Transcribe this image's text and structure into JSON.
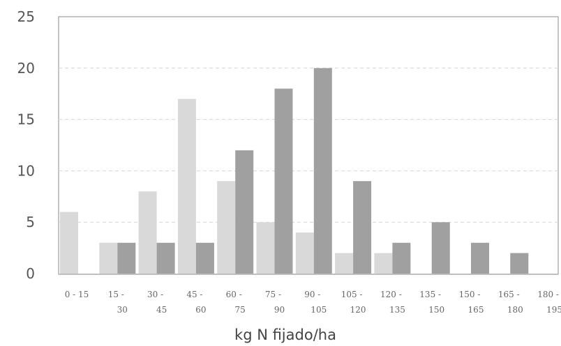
{
  "chart_data": {
    "type": "bar",
    "xlabel": "kg N fijado/ha",
    "ylabel": "",
    "ylim": [
      0,
      25
    ],
    "yticks": [
      "0",
      "5",
      "10",
      "15",
      "20",
      "25"
    ],
    "grid": true,
    "categories": [
      [
        "0 - 15",
        ""
      ],
      [
        "15 -",
        "30"
      ],
      [
        "30 -",
        "45"
      ],
      [
        "45 -",
        "60"
      ],
      [
        "60 -",
        "75"
      ],
      [
        "75 -",
        "90"
      ],
      [
        "90 -",
        "105"
      ],
      [
        "105 -",
        "120"
      ],
      [
        "120 -",
        "135"
      ],
      [
        "135 -",
        "150"
      ],
      [
        "150 -",
        "165"
      ],
      [
        "165 -",
        "180"
      ],
      [
        "180 -",
        "195"
      ]
    ],
    "series": [
      {
        "color": "#d9d9d9",
        "values": [
          6,
          3,
          8,
          17,
          9,
          5,
          4,
          2,
          2,
          0,
          0,
          0,
          0
        ]
      },
      {
        "color": "#a0a0a0",
        "values": [
          0,
          3,
          3,
          3,
          12,
          18,
          20,
          9,
          3,
          5,
          3,
          2,
          0
        ]
      }
    ]
  }
}
